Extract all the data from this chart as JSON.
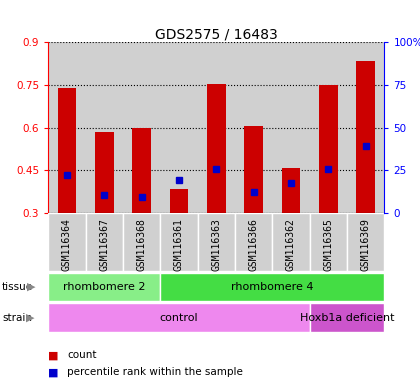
{
  "title": "GDS2575 / 16483",
  "samples": [
    "GSM116364",
    "GSM116367",
    "GSM116368",
    "GSM116361",
    "GSM116363",
    "GSM116366",
    "GSM116362",
    "GSM116365",
    "GSM116369"
  ],
  "red_values": [
    0.74,
    0.585,
    0.6,
    0.385,
    0.755,
    0.605,
    0.46,
    0.75,
    0.835
  ],
  "blue_values": [
    0.435,
    0.365,
    0.355,
    0.415,
    0.455,
    0.375,
    0.405,
    0.455,
    0.535
  ],
  "ylim": [
    0.3,
    0.9
  ],
  "y_ticks_left": [
    0.3,
    0.45,
    0.6,
    0.75,
    0.9
  ],
  "y_right_labels": [
    "0",
    "25",
    "50",
    "75",
    "100%"
  ],
  "y_ticks_right_pct": [
    0,
    25,
    50,
    75,
    100
  ],
  "bar_color": "#cc0000",
  "blue_color": "#0000cc",
  "tissue_labels": [
    {
      "label": "rhombomere 2",
      "start": 0,
      "end": 3,
      "color": "#88ee88"
    },
    {
      "label": "rhombomere 4",
      "start": 3,
      "end": 9,
      "color": "#44dd44"
    }
  ],
  "strain_labels": [
    {
      "label": "control",
      "start": 0,
      "end": 7,
      "color": "#ee88ee"
    },
    {
      "label": "Hoxb1a deficient",
      "start": 7,
      "end": 9,
      "color": "#cc55cc"
    }
  ],
  "legend_count_label": "count",
  "legend_percentile_label": "percentile rank within the sample",
  "col_bg_color": "#d0d0d0",
  "bar_width": 0.5,
  "blue_marker_size": 5
}
